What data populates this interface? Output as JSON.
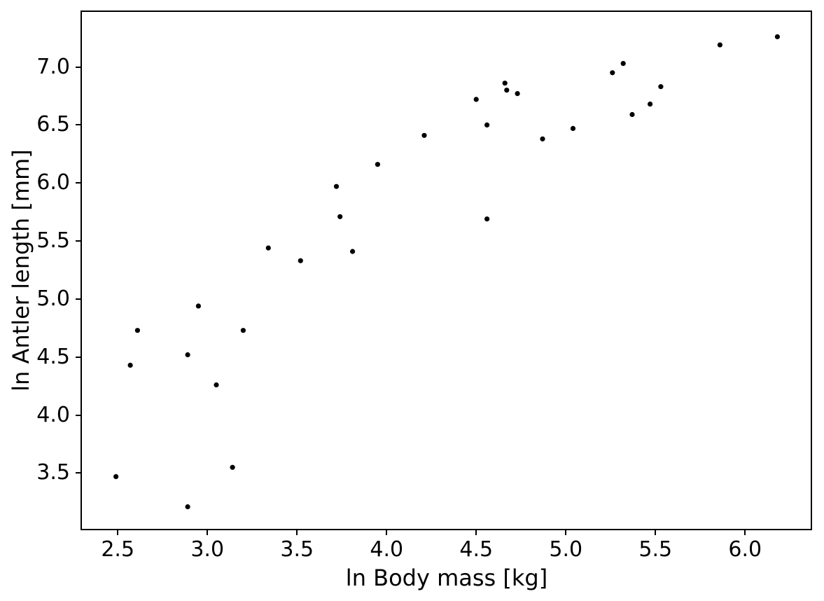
{
  "figure": {
    "background_color": "#ffffff",
    "spine_color": "#000000",
    "text_color": "#000000"
  },
  "chart_data": {
    "type": "scatter",
    "title": "",
    "xlabel": "ln Body mass [kg]",
    "ylabel": "ln Antler length [mm]",
    "xlim": [
      2.3,
      6.37
    ],
    "ylim": [
      3.02,
      7.48
    ],
    "grid": false,
    "legend": null,
    "xticks": {
      "values": [
        2.5,
        3.0,
        3.5,
        4.0,
        4.5,
        5.0,
        5.5,
        6.0
      ],
      "labels": [
        "2.5",
        "3.0",
        "3.5",
        "4.0",
        "4.5",
        "5.0",
        "5.5",
        "6.0"
      ]
    },
    "yticks": {
      "values": [
        3.5,
        4.0,
        4.5,
        5.0,
        5.5,
        6.0,
        6.5,
        7.0
      ],
      "labels": [
        "3.5",
        "4.0",
        "4.5",
        "5.0",
        "5.5",
        "6.0",
        "6.5",
        "7.0"
      ]
    },
    "marker": {
      "shape": "circle",
      "color": "#000000",
      "radius_px": 3.6
    },
    "points": [
      [
        2.49,
        3.47
      ],
      [
        2.57,
        4.43
      ],
      [
        2.61,
        4.73
      ],
      [
        2.89,
        3.21
      ],
      [
        2.89,
        4.52
      ],
      [
        2.95,
        4.94
      ],
      [
        3.05,
        4.26
      ],
      [
        3.14,
        3.55
      ],
      [
        3.2,
        4.73
      ],
      [
        3.34,
        5.44
      ],
      [
        3.52,
        5.33
      ],
      [
        3.72,
        5.97
      ],
      [
        3.74,
        5.71
      ],
      [
        3.81,
        5.41
      ],
      [
        3.95,
        6.16
      ],
      [
        4.21,
        6.41
      ],
      [
        4.5,
        6.72
      ],
      [
        4.56,
        6.5
      ],
      [
        4.56,
        5.69
      ],
      [
        4.66,
        6.86
      ],
      [
        4.67,
        6.8
      ],
      [
        4.73,
        6.77
      ],
      [
        4.87,
        6.38
      ],
      [
        5.04,
        6.47
      ],
      [
        5.26,
        6.95
      ],
      [
        5.32,
        7.03
      ],
      [
        5.37,
        6.59
      ],
      [
        5.47,
        6.68
      ],
      [
        5.53,
        6.83
      ],
      [
        5.86,
        7.19
      ],
      [
        6.18,
        7.26
      ]
    ]
  }
}
